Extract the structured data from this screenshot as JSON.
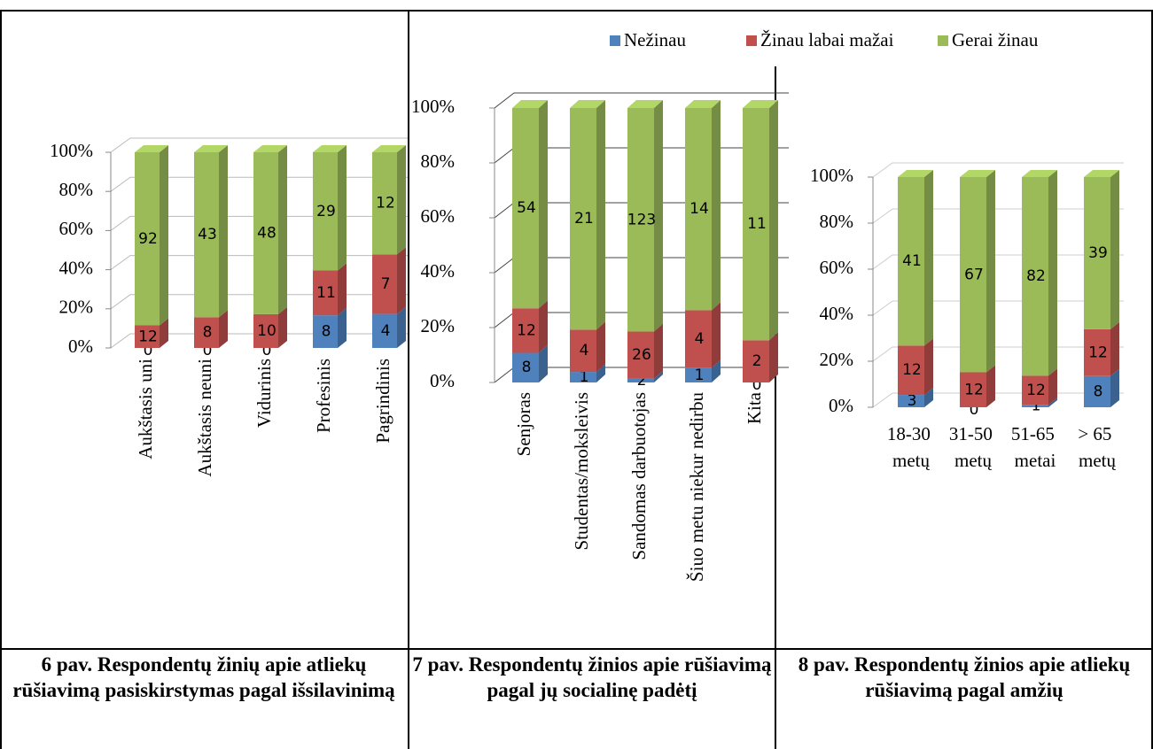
{
  "legend": [
    {
      "name": "Nežinau",
      "color": "#4f81bd"
    },
    {
      "name": "Žinau labai mažai",
      "color": "#c0504d"
    },
    {
      "name": "Gerai žinau",
      "color": "#9bbb59"
    }
  ],
  "chart_data": [
    {
      "type": "bar",
      "stacking": "percent",
      "grid": true,
      "categories": [
        "Aukštasis uni",
        "Aukštasis neuni",
        "Vidurinis",
        "Profesinis",
        "Pagrindinis"
      ],
      "series": [
        {
          "values": [
            0,
            0,
            0,
            8,
            4
          ]
        },
        {
          "values": [
            12,
            8,
            10,
            11,
            7
          ]
        },
        {
          "values": [
            92,
            43,
            48,
            29,
            12
          ]
        }
      ],
      "ylim": [
        0,
        100
      ],
      "yticks": [
        {
          "value": 0,
          "label": "0%"
        },
        {
          "value": 20,
          "label": "20%"
        },
        {
          "value": 40,
          "label": "40%"
        },
        {
          "value": 60,
          "label": "60%"
        },
        {
          "value": 80,
          "label": "80%"
        },
        {
          "value": 100,
          "label": "100%"
        }
      ]
    },
    {
      "type": "bar",
      "stacking": "percent",
      "grid": true,
      "categories": [
        "Senjoras",
        "Studentas/moksleivis",
        "Sandomas darbuotojas",
        "Šiuo metu niekur nedirbu",
        "Kita"
      ],
      "series": [
        {
          "values": [
            8,
            1,
            2,
            1,
            0
          ]
        },
        {
          "values": [
            12,
            4,
            26,
            4,
            2
          ]
        },
        {
          "values": [
            54,
            21,
            123,
            14,
            11
          ]
        }
      ],
      "ylim": [
        0,
        100
      ],
      "yticks": [
        {
          "value": 0,
          "label": "0%"
        },
        {
          "value": 20,
          "label": "20%"
        },
        {
          "value": 40,
          "label": "40%"
        },
        {
          "value": 60,
          "label": "60%"
        },
        {
          "value": 80,
          "label": "80%"
        },
        {
          "value": 100,
          "label": "100%"
        }
      ]
    },
    {
      "type": "bar",
      "stacking": "percent",
      "grid": true,
      "categories": [
        "18-30 metų",
        "31-50 metų",
        "51-65 metai",
        "> 65 metų"
      ],
      "series": [
        {
          "values": [
            3,
            0,
            1,
            8
          ]
        },
        {
          "values": [
            12,
            12,
            12,
            12
          ]
        },
        {
          "values": [
            41,
            67,
            82,
            39
          ]
        }
      ],
      "ylim": [
        0,
        100
      ],
      "yticks": [
        {
          "value": 0,
          "label": "0%"
        },
        {
          "value": 20,
          "label": "20%"
        },
        {
          "value": 40,
          "label": "40%"
        },
        {
          "value": 60,
          "label": "60%"
        },
        {
          "value": 80,
          "label": "80%"
        },
        {
          "value": 100,
          "label": "100%"
        }
      ]
    }
  ],
  "captions": [
    "6 pav. Respondentų žinių apie atliekų rūšiavimą pasiskirstymas pagal išsilavinimą",
    "7 pav. Respondentų žinios apie rūšiavimą pagal jų socialinę padėtį",
    "8 pav. Respondentų žinios apie atliekų rūšiavimą pagal amžių"
  ]
}
